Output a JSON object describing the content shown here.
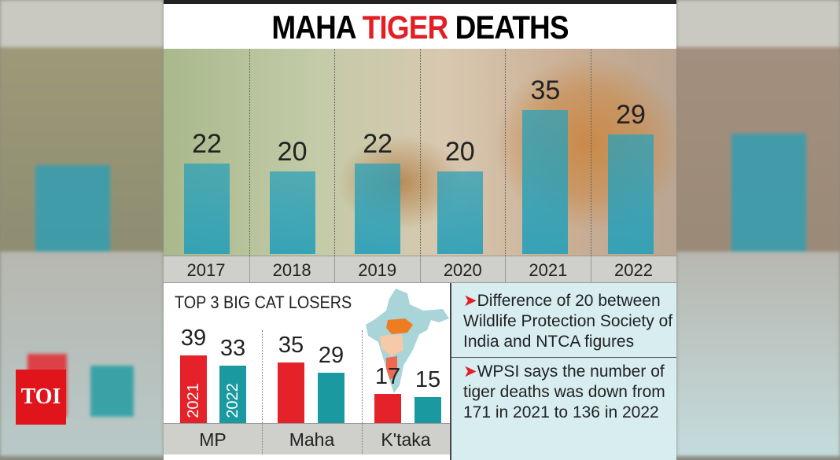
{
  "title": {
    "part1": "MAHA ",
    "part2": "TIGER",
    "part3": " DEATHS"
  },
  "chart_data": [
    {
      "type": "bar",
      "title": "MAHA TIGER DEATHS",
      "categories": [
        "2017",
        "2018",
        "2019",
        "2020",
        "2021",
        "2022"
      ],
      "values": [
        22,
        20,
        22,
        20,
        35,
        29
      ],
      "ylim": [
        0,
        35
      ],
      "color": "#2aa0b8"
    },
    {
      "type": "bar",
      "title": "TOP 3 BIG CAT LOSERS",
      "categories": [
        "MP",
        "Maha",
        "K'taka"
      ],
      "series": [
        {
          "name": "2021",
          "values": [
            39,
            35,
            17
          ],
          "color": "#e52129"
        },
        {
          "name": "2022",
          "values": [
            33,
            29,
            15
          ],
          "color": "#1a9aa0"
        }
      ],
      "ylim": [
        0,
        39
      ]
    }
  ],
  "notes": [
    {
      "bullet": "➤",
      "text": "Difference of 20 between Wildlife Protection Society of India and NTCA figures"
    },
    {
      "bullet": "➤",
      "text": "WPSI says the number of tiger deaths was down from 171 in 2021 to 136 in 2022"
    }
  ],
  "logo": "TOI"
}
